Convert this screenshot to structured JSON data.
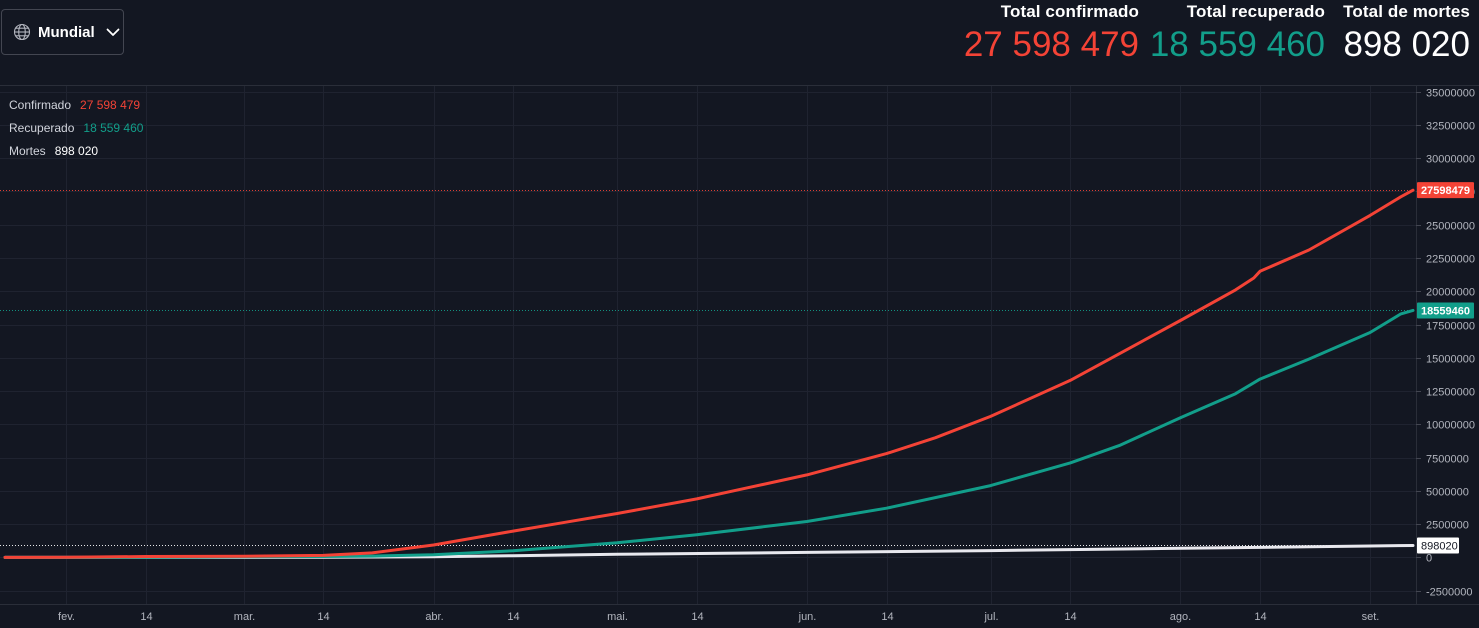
{
  "header": {
    "region": {
      "label": "Mundial",
      "icon": "globe-icon",
      "chevron": "chevron-down-icon"
    },
    "stats": [
      {
        "id": "confirmed",
        "label": "Total confirmado",
        "value": "27 598 479",
        "color": "#f44336"
      },
      {
        "id": "recovered",
        "label": "Total recuperado",
        "value": "18 559 460",
        "color": "#129e8a"
      },
      {
        "id": "deaths",
        "label": "Total de mortes",
        "value": "898 020",
        "color": "#ffffff"
      }
    ]
  },
  "legend": [
    {
      "name": "Confirmado",
      "value": "27 598 479",
      "color": "#f44336"
    },
    {
      "name": "Recuperado",
      "value": "18 559 460",
      "color": "#129e8a"
    },
    {
      "name": "Mortes",
      "value": "898 020",
      "color": "#ffffff"
    }
  ],
  "chart_data": {
    "type": "line",
    "x_range": [
      "2020-01-22",
      "2020-09-08"
    ],
    "ylim": [
      -3500000,
      35500000
    ],
    "y_ticks": [
      35000000,
      32500000,
      30000000,
      27500000,
      25000000,
      22500000,
      20000000,
      17500000,
      15000000,
      12500000,
      10000000,
      7500000,
      5000000,
      2500000,
      0,
      -2500000
    ],
    "x_ticks": [
      {
        "date": "2020-02-01",
        "label": "fev."
      },
      {
        "date": "2020-02-14",
        "label": "14"
      },
      {
        "date": "2020-03-01",
        "label": "mar."
      },
      {
        "date": "2020-03-14",
        "label": "14"
      },
      {
        "date": "2020-04-01",
        "label": "abr."
      },
      {
        "date": "2020-04-14",
        "label": "14"
      },
      {
        "date": "2020-05-01",
        "label": "mai."
      },
      {
        "date": "2020-05-14",
        "label": "14"
      },
      {
        "date": "2020-06-01",
        "label": "jun."
      },
      {
        "date": "2020-06-14",
        "label": "14"
      },
      {
        "date": "2020-07-01",
        "label": "jul."
      },
      {
        "date": "2020-07-14",
        "label": "14"
      },
      {
        "date": "2020-08-01",
        "label": "ago."
      },
      {
        "date": "2020-08-14",
        "label": "14"
      },
      {
        "date": "2020-09-01",
        "label": "set."
      }
    ],
    "grid": true,
    "series": [
      {
        "name": "Confirmado",
        "color": "#f44336",
        "last_value": 27598479,
        "last_label": "27598479",
        "points": [
          [
            "2020-01-22",
            600
          ],
          [
            "2020-02-01",
            12000
          ],
          [
            "2020-02-14",
            67000
          ],
          [
            "2020-03-01",
            90000
          ],
          [
            "2020-03-14",
            150000
          ],
          [
            "2020-03-22",
            340000
          ],
          [
            "2020-04-01",
            930000
          ],
          [
            "2020-04-08",
            1500000
          ],
          [
            "2020-04-14",
            1980000
          ],
          [
            "2020-04-22",
            2600000
          ],
          [
            "2020-05-01",
            3300000
          ],
          [
            "2020-05-14",
            4400000
          ],
          [
            "2020-05-22",
            5200000
          ],
          [
            "2020-06-01",
            6200000
          ],
          [
            "2020-06-14",
            7800000
          ],
          [
            "2020-06-22",
            9000000
          ],
          [
            "2020-07-01",
            10600000
          ],
          [
            "2020-07-14",
            13300000
          ],
          [
            "2020-07-22",
            15300000
          ],
          [
            "2020-08-01",
            17800000
          ],
          [
            "2020-08-10",
            20100000
          ],
          [
            "2020-08-13",
            21000000
          ],
          [
            "2020-08-14",
            21500000
          ],
          [
            "2020-08-22",
            23100000
          ],
          [
            "2020-09-01",
            25700000
          ],
          [
            "2020-09-06",
            27100000
          ],
          [
            "2020-09-08",
            27598479
          ]
        ]
      },
      {
        "name": "Recuperado",
        "color": "#129e8a",
        "last_value": 18559460,
        "last_label": "18559460",
        "points": [
          [
            "2020-01-22",
            30
          ],
          [
            "2020-02-01",
            300
          ],
          [
            "2020-02-14",
            9000
          ],
          [
            "2020-03-01",
            45000
          ],
          [
            "2020-03-14",
            70000
          ],
          [
            "2020-03-22",
            100000
          ],
          [
            "2020-04-01",
            200000
          ],
          [
            "2020-04-14",
            500000
          ],
          [
            "2020-05-01",
            1100000
          ],
          [
            "2020-05-14",
            1700000
          ],
          [
            "2020-06-01",
            2700000
          ],
          [
            "2020-06-14",
            3700000
          ],
          [
            "2020-07-01",
            5400000
          ],
          [
            "2020-07-14",
            7100000
          ],
          [
            "2020-07-22",
            8400000
          ],
          [
            "2020-08-01",
            10500000
          ],
          [
            "2020-08-10",
            12300000
          ],
          [
            "2020-08-14",
            13400000
          ],
          [
            "2020-08-22",
            14900000
          ],
          [
            "2020-09-01",
            16900000
          ],
          [
            "2020-09-06",
            18300000
          ],
          [
            "2020-09-08",
            18559460
          ]
        ]
      },
      {
        "name": "Mortes",
        "color": "#e8e8ee",
        "last_value": 898020,
        "last_label": "898020",
        "points": [
          [
            "2020-01-22",
            17
          ],
          [
            "2020-02-01",
            260
          ],
          [
            "2020-02-14",
            1500
          ],
          [
            "2020-03-01",
            3000
          ],
          [
            "2020-03-14",
            5800
          ],
          [
            "2020-04-01",
            47000
          ],
          [
            "2020-04-14",
            130000
          ],
          [
            "2020-05-01",
            235000
          ],
          [
            "2020-06-01",
            375000
          ],
          [
            "2020-07-01",
            515000
          ],
          [
            "2020-08-01",
            685000
          ],
          [
            "2020-09-01",
            860000
          ],
          [
            "2020-09-08",
            898020
          ]
        ]
      }
    ]
  }
}
